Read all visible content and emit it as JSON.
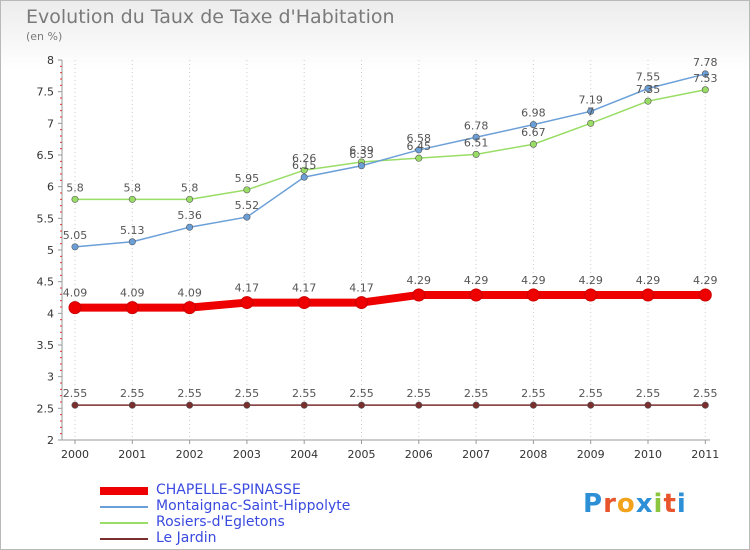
{
  "chart_data": {
    "type": "line",
    "title": "Evolution du Taux de Taxe d'Habitation",
    "subtitle": "(en %)",
    "x": [
      "2000",
      "2001",
      "2002",
      "2003",
      "2004",
      "2005",
      "2006",
      "2007",
      "2008",
      "2009",
      "2010",
      "2011"
    ],
    "ylim": [
      2,
      8
    ],
    "yticks": [
      "2",
      "2.5",
      "3",
      "3.5",
      "4",
      "4.5",
      "5",
      "5.5",
      "6",
      "6.5",
      "7",
      "7.5",
      "8"
    ],
    "grid": "vertical dotted",
    "legend": "bottom-left",
    "series": [
      {
        "name": "CHAPELLE-SPINASSE",
        "color": "#ee0000",
        "values": [
          4.09,
          4.09,
          4.09,
          4.17,
          4.17,
          4.17,
          4.29,
          4.29,
          4.29,
          4.29,
          4.29,
          4.29
        ],
        "labels": [
          "4.09",
          "4.09",
          "4.09",
          "4.17",
          "4.17",
          "4.17",
          "4.29",
          "4.29",
          "4.29",
          "4.29",
          "4.29",
          "4.29"
        ]
      },
      {
        "name": "Montaignac-Saint-Hippolyte",
        "color": "#6b9fd8",
        "values": [
          5.05,
          5.13,
          5.36,
          5.52,
          6.15,
          6.33,
          6.58,
          6.78,
          6.98,
          7.19,
          7.55,
          7.78
        ],
        "labels": [
          "5.05",
          "5.13",
          "5.36",
          "5.52",
          "6.15",
          "6.33",
          "6.58",
          "6.78",
          "6.98",
          "7.19",
          "7.55",
          "7.78"
        ]
      },
      {
        "name": "Rosiers-d'Egletons",
        "color": "#99dd66",
        "values": [
          5.8,
          5.8,
          5.8,
          5.95,
          6.26,
          6.39,
          6.45,
          6.51,
          6.67,
          7,
          7.35,
          7.53
        ],
        "labels": [
          "5.8",
          "5.8",
          "5.8",
          "5.95",
          "6.26",
          "6.39",
          "6.45",
          "6.51",
          "6.67",
          "7",
          "7.35",
          "7.53"
        ]
      },
      {
        "name": "Le Jardin",
        "color": "#7a2e2e",
        "values": [
          2.55,
          2.55,
          2.55,
          2.55,
          2.55,
          2.55,
          2.55,
          2.55,
          2.55,
          2.55,
          2.55,
          2.55
        ],
        "labels": [
          "2.55",
          "2.55",
          "2.55",
          "2.55",
          "2.55",
          "2.55",
          "2.55",
          "2.55",
          "2.55",
          "2.55",
          "2.55",
          "2.55"
        ]
      }
    ]
  },
  "logo": {
    "letters": [
      "P",
      "r",
      "o",
      "x",
      "i",
      "t",
      "i"
    ],
    "colors": [
      "#2d8fd6",
      "#e8542c",
      "#f2a31b",
      "#2d8fd6",
      "#8cc63f",
      "#e8542c",
      "#2d8fd6"
    ]
  }
}
